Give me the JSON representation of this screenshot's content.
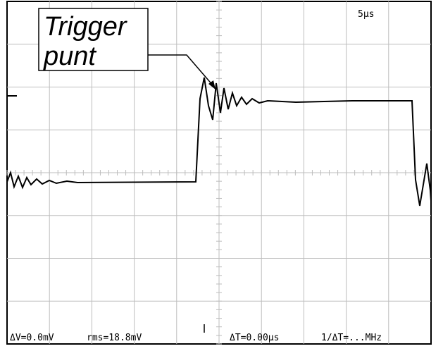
{
  "label": {
    "line1": "Trigger",
    "line2": "punt"
  },
  "timebase": "5µs",
  "readouts": [
    "ΔV=0.0mV",
    "rms=18.8mV",
    "ΔT=0.00µs",
    "1/ΔT=...MHz"
  ]
}
